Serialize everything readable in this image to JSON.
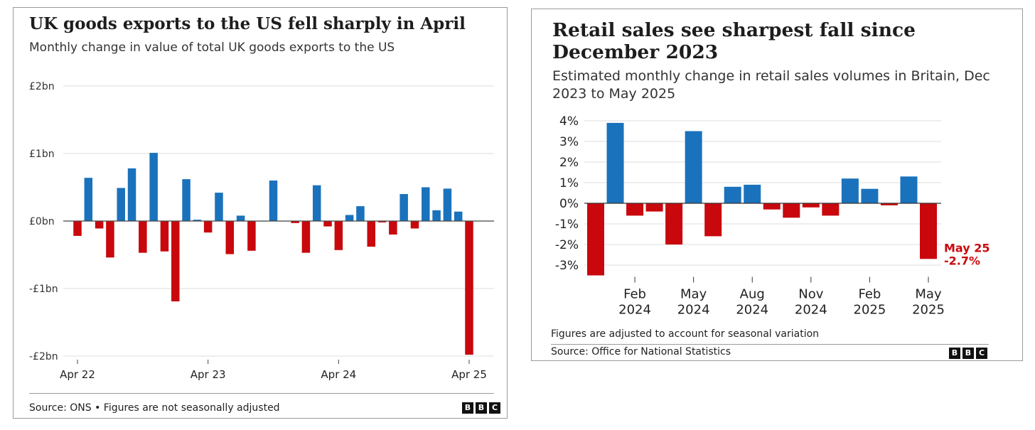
{
  "chart_data": [
    {
      "type": "bar",
      "title": "UK goods exports to the US fell sharply in April",
      "subtitle": "Monthly change in value of total UK goods exports to the US",
      "unit": "£bn",
      "ylim": [
        -2,
        2
      ],
      "yticks": [
        2,
        1,
        0,
        -1,
        -2
      ],
      "ytick_labels": [
        "£2bn",
        "£1bn",
        "£0bn",
        "-£1bn",
        "-£2bn"
      ],
      "categories": [
        "Apr 22",
        "May 22",
        "Jun 22",
        "Jul 22",
        "Aug 22",
        "Sep 22",
        "Oct 22",
        "Nov 22",
        "Dec 22",
        "Jan 23",
        "Feb 23",
        "Mar 23",
        "Apr 23",
        "May 23",
        "Jun 23",
        "Jul 23",
        "Aug 23",
        "Sep 23",
        "Oct 23",
        "Nov 23",
        "Dec 23",
        "Jan 24",
        "Feb 24",
        "Mar 24",
        "Apr 24",
        "May 24",
        "Jun 24",
        "Jul 24",
        "Aug 24",
        "Sep 24",
        "Oct 24",
        "Nov 24",
        "Dec 24",
        "Jan 25",
        "Feb 25",
        "Mar 25",
        "Apr 25"
      ],
      "xtick_labels": [
        {
          "label": "Apr 22",
          "index": 0
        },
        {
          "label": "Apr 23",
          "index": 12
        },
        {
          "label": "Apr 24",
          "index": 24
        },
        {
          "label": "Apr 25",
          "index": 36
        }
      ],
      "values": [
        -0.22,
        0.64,
        -0.11,
        -0.54,
        0.49,
        0.78,
        -0.47,
        1.01,
        -0.45,
        -1.19,
        0.62,
        0.02,
        -0.17,
        0.42,
        -0.49,
        0.08,
        -0.44,
        0,
        0.6,
        0,
        -0.03,
        -0.47,
        0.53,
        -0.08,
        -0.43,
        0.09,
        0.22,
        -0.38,
        -0.02,
        -0.2,
        0.4,
        -0.11,
        0.5,
        0.16,
        0.48,
        0.14,
        -1.98
      ],
      "positive_color": "#1a72bc",
      "negative_color": "#c8080d",
      "grid": true,
      "source": "Source: ONS • Figures are not seasonally adjusted"
    },
    {
      "type": "bar",
      "title": "Retail sales see sharpest fall since December 2023",
      "subtitle": "Estimated monthly change in retail sales volumes in Britain, Dec 2023 to May 2025",
      "unit": "%",
      "ylim": [
        -3.5,
        4
      ],
      "yticks": [
        4,
        3,
        2,
        1,
        0,
        -1,
        -2,
        -3
      ],
      "ytick_labels": [
        "4%",
        "3%",
        "2%",
        "1%",
        "0%",
        "-1%",
        "-2%",
        "-3%"
      ],
      "categories": [
        "Dec 2023",
        "Jan 2024",
        "Feb 2024",
        "Mar 2024",
        "Apr 2024",
        "May 2024",
        "Jun 2024",
        "Jul 2024",
        "Aug 2024",
        "Sep 2024",
        "Oct 2024",
        "Nov 2024",
        "Dec 2024",
        "Jan 2025",
        "Feb 2025",
        "Mar 2025",
        "Apr 2025",
        "May 2025"
      ],
      "xtick_labels": [
        {
          "month": "Feb",
          "year": "2024",
          "index": 2
        },
        {
          "month": "May",
          "year": "2024",
          "index": 5
        },
        {
          "month": "Aug",
          "year": "2024",
          "index": 8
        },
        {
          "month": "Nov",
          "year": "2024",
          "index": 11
        },
        {
          "month": "Feb",
          "year": "2025",
          "index": 14
        },
        {
          "month": "May",
          "year": "2025",
          "index": 17
        }
      ],
      "values": [
        -3.5,
        3.9,
        -0.6,
        -0.4,
        -2.0,
        3.5,
        -1.6,
        0.8,
        0.9,
        -0.3,
        -0.7,
        -0.2,
        -0.6,
        1.2,
        0.7,
        -0.1,
        1.3,
        -2.7
      ],
      "positive_color": "#1a72bc",
      "negative_color": "#c8080d",
      "annotation": {
        "index": 17,
        "line1": "May 25",
        "line2": "-2.7%"
      },
      "grid": true,
      "note": "Figures are adjusted to account for seasonal variation",
      "source": "Source: Office for National Statistics"
    }
  ],
  "logo": [
    "B",
    "B",
    "C"
  ]
}
